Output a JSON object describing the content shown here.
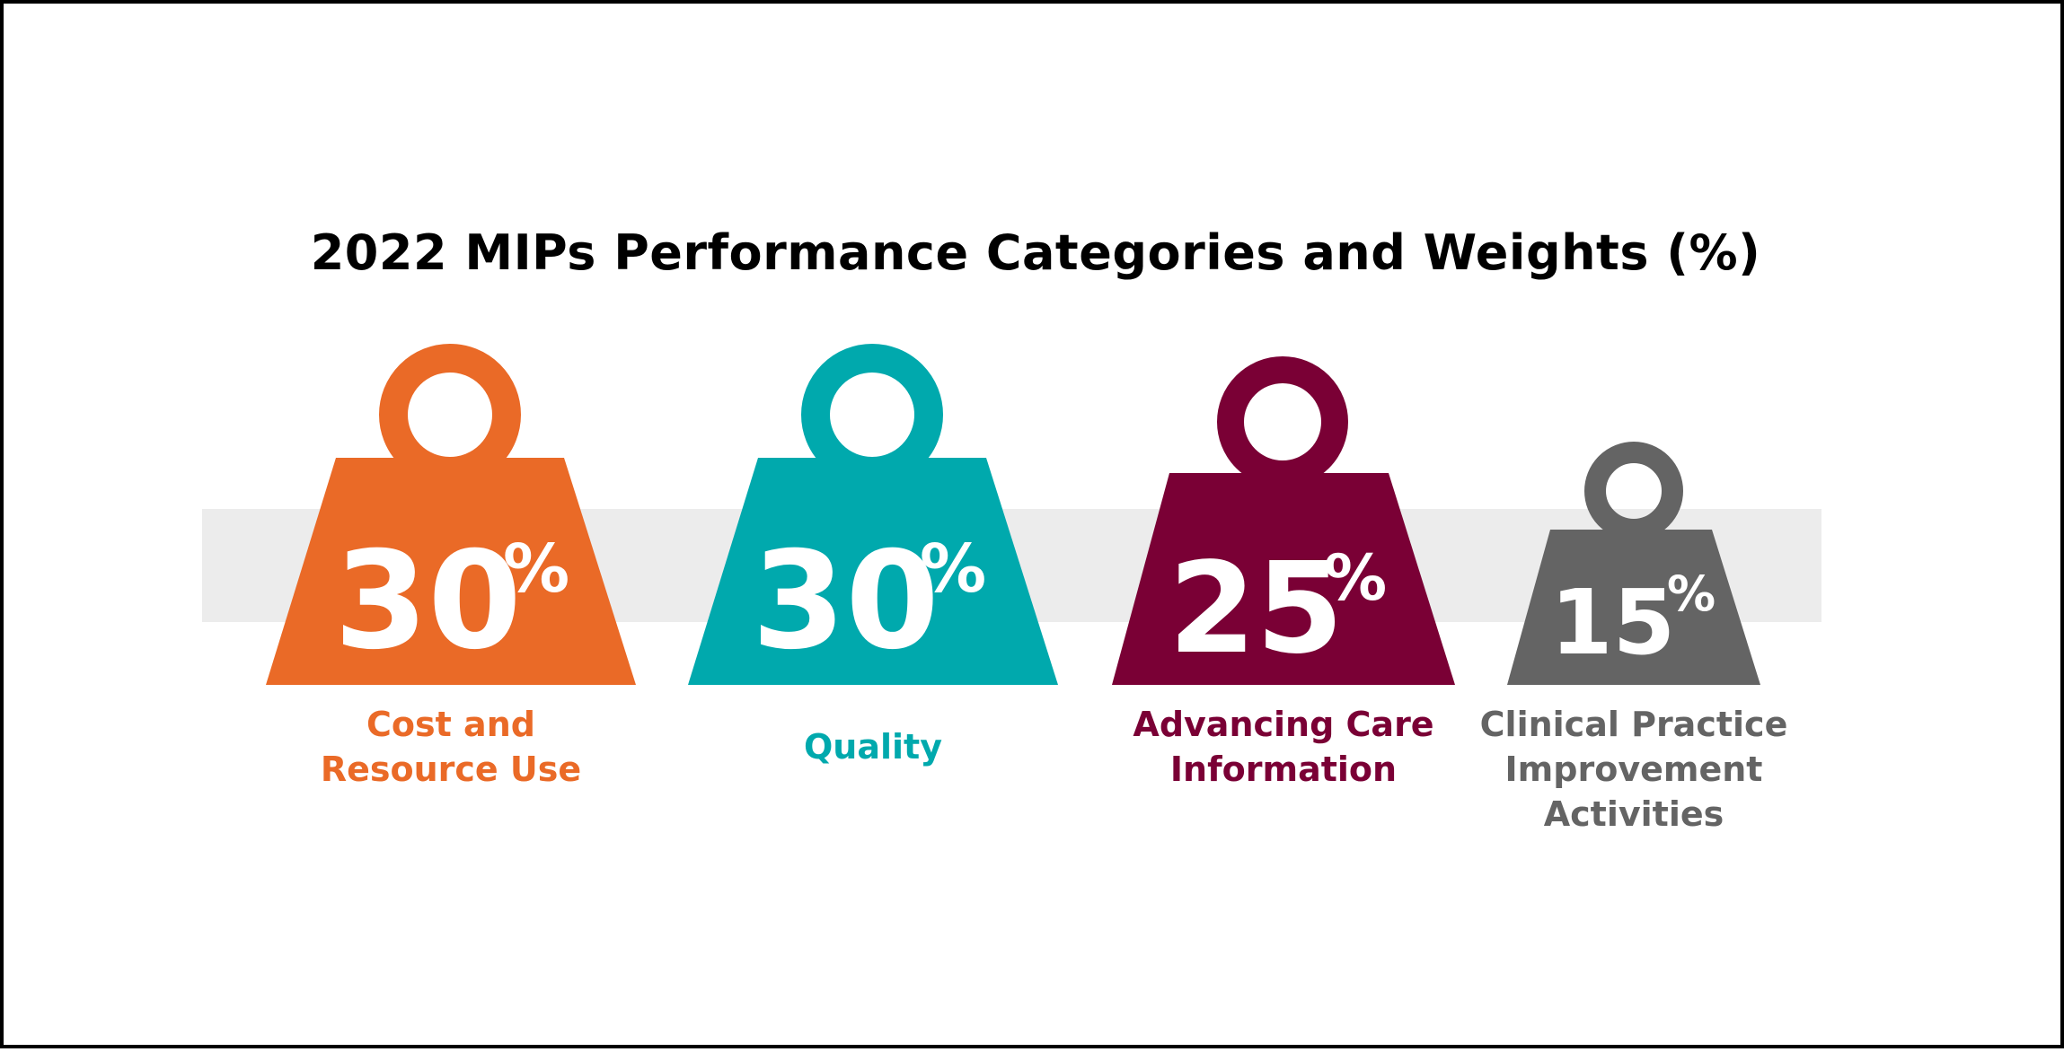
{
  "title": "2022 MIPs Performance Categories and Weights (%)",
  "categories": [
    {
      "value": "30",
      "unit": "%",
      "label": "Cost and\nResource Use",
      "color": "#ea6a27",
      "icon": "weight-icon"
    },
    {
      "value": "30",
      "unit": "%",
      "label": "Quality",
      "color": "#00a9ad",
      "icon": "weight-icon"
    },
    {
      "value": "25",
      "unit": "%",
      "label": "Advancing Care\nInformation",
      "color": "#7a0035",
      "icon": "weight-icon"
    },
    {
      "value": "15",
      "unit": "%",
      "label": "Clinical Practice\nImprovement\nActivities",
      "color": "#646464",
      "icon": "weight-icon"
    }
  ],
  "colors": {
    "band": "#ececec",
    "frame": "#000000"
  }
}
